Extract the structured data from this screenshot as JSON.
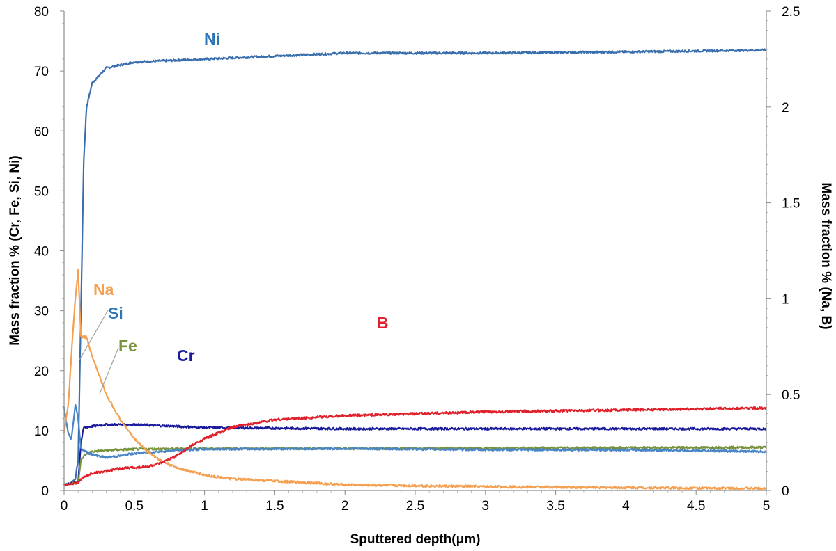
{
  "chart_data": {
    "type": "line",
    "xlabel": "Sputtered depth(μm)",
    "ylabel": "Mass fraction % (Cr, Fe, Si, Ni)",
    "y2label": "Mass fraction % (Na, B)",
    "xlim": [
      0,
      5
    ],
    "ylim": [
      0,
      80
    ],
    "y2lim": [
      0,
      2.5
    ],
    "x_ticks": [
      "0",
      "0.5",
      "1",
      "1.5",
      "2",
      "2.5",
      "3",
      "3.5",
      "4",
      "4.5",
      "5"
    ],
    "y_ticks": [
      "0",
      "10",
      "20",
      "30",
      "40",
      "50",
      "60",
      "70",
      "80"
    ],
    "y2_ticks": [
      "0",
      "0.5",
      "1",
      "1.5",
      "2",
      "2.5"
    ],
    "grid": false,
    "legend": "none",
    "series": [
      {
        "name": "Ni",
        "axis": "left",
        "color": "#3a6fad",
        "x": [
          0,
          0.05,
          0.08,
          0.1,
          0.12,
          0.14,
          0.16,
          0.2,
          0.3,
          0.5,
          1,
          2,
          3,
          4,
          5
        ],
        "y": [
          1,
          1.2,
          2,
          5,
          30,
          55,
          64,
          68,
          70.5,
          71.5,
          72,
          73,
          73,
          73.2,
          73.5
        ]
      },
      {
        "name": "Cr",
        "axis": "left",
        "color": "#1a1a9c",
        "x": [
          0,
          0.05,
          0.1,
          0.12,
          0.14,
          0.2,
          0.3,
          0.5,
          0.8,
          1,
          2,
          3,
          5
        ],
        "y": [
          1,
          1.2,
          1.5,
          8,
          10.5,
          10.7,
          11,
          11,
          10.7,
          10.5,
          10.3,
          10.3,
          10.3
        ]
      },
      {
        "name": "Fe",
        "axis": "left",
        "color": "#77933c",
        "x": [
          0,
          0.1,
          0.12,
          0.15,
          0.2,
          0.3,
          0.5,
          1,
          2,
          5
        ],
        "y": [
          1,
          1.3,
          5,
          6,
          6.5,
          6.7,
          6.9,
          7,
          7,
          7.2
        ]
      },
      {
        "name": "Si",
        "axis": "left",
        "color": "#4a86c5",
        "x": [
          0,
          0.01,
          0.02,
          0.03,
          0.05,
          0.07,
          0.08,
          0.1,
          0.12,
          0.15,
          0.2,
          0.3,
          0.4,
          0.5,
          0.8,
          1,
          2,
          3,
          4,
          5
        ],
        "y": [
          14,
          12,
          11,
          9.5,
          8.5,
          12,
          14.5,
          12,
          7,
          6.5,
          6,
          5.5,
          5.8,
          6.2,
          6.7,
          6.9,
          7,
          6.8,
          6.8,
          6.5
        ]
      },
      {
        "name": "Na",
        "axis": "right",
        "color": "#f4a050",
        "x": [
          0,
          0.03,
          0.06,
          0.08,
          0.1,
          0.12,
          0.14,
          0.16,
          0.18,
          0.2,
          0.25,
          0.3,
          0.4,
          0.5,
          0.6,
          0.7,
          0.8,
          1,
          1.2,
          1.5,
          2,
          3,
          4,
          5
        ],
        "y": [
          0.3,
          0.45,
          0.8,
          1.0,
          1.15,
          0.8,
          0.8,
          0.8,
          0.75,
          0.7,
          0.6,
          0.5,
          0.37,
          0.27,
          0.2,
          0.15,
          0.12,
          0.08,
          0.06,
          0.05,
          0.03,
          0.02,
          0.015,
          0.01
        ]
      },
      {
        "name": "B",
        "axis": "right",
        "color": "#e0202a",
        "x": [
          0,
          0.1,
          0.12,
          0.2,
          0.3,
          0.4,
          0.5,
          0.6,
          0.7,
          0.8,
          0.9,
          1,
          1.2,
          1.5,
          2,
          2.5,
          3,
          4,
          5
        ],
        "y": [
          0.03,
          0.04,
          0.06,
          0.09,
          0.1,
          0.115,
          0.12,
          0.125,
          0.145,
          0.18,
          0.23,
          0.27,
          0.33,
          0.37,
          0.39,
          0.4,
          0.41,
          0.42,
          0.43
        ]
      }
    ]
  }
}
